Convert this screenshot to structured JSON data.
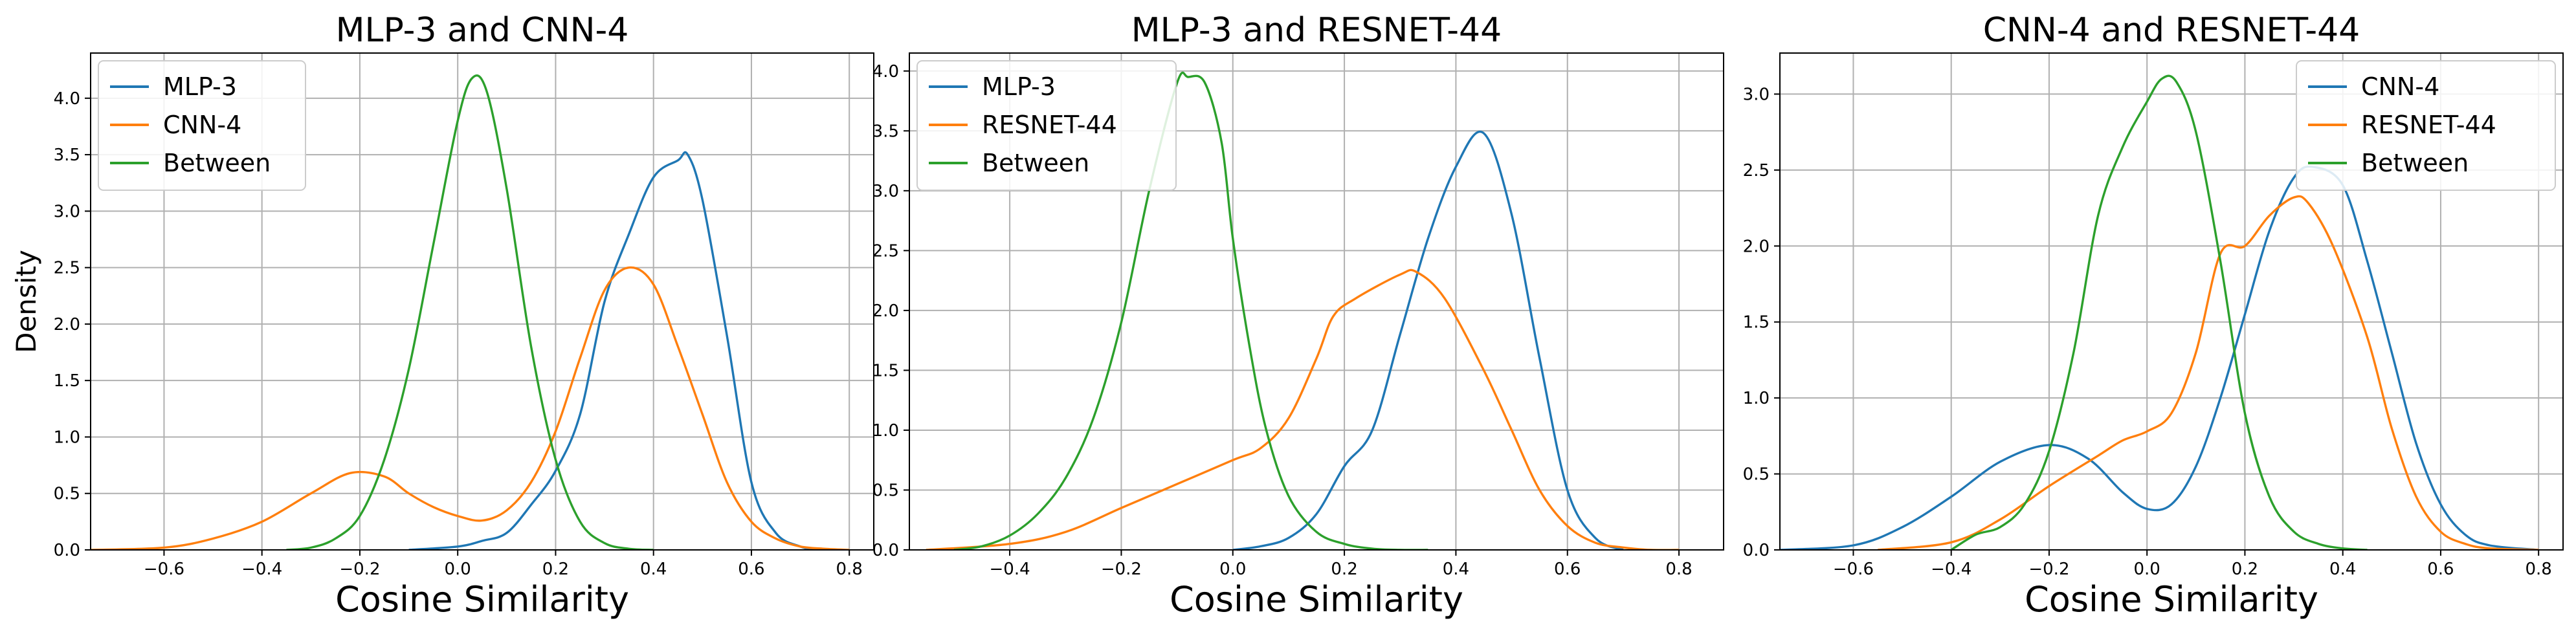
{
  "chart_data": [
    {
      "type": "line",
      "title": "MLP-3 and CNN-4",
      "xlabel": "Cosine Similarity",
      "ylabel": "Density",
      "xlim": [
        -0.75,
        0.85
      ],
      "ylim": [
        0,
        4.4
      ],
      "xticks": [
        -0.6,
        -0.4,
        -0.2,
        0.0,
        0.2,
        0.4,
        0.6,
        0.8
      ],
      "xtick_labels": [
        "−0.6",
        "−0.4",
        "−0.2",
        "0.0",
        "0.2",
        "0.4",
        "0.6",
        "0.8"
      ],
      "yticks": [
        0,
        0.5,
        1.0,
        1.5,
        2.0,
        2.5,
        3.0,
        3.5,
        4.0
      ],
      "ytick_labels": [
        "0.0",
        "0.5",
        "1.0",
        "1.5",
        "2.0",
        "2.5",
        "3.0",
        "3.5",
        "4.0"
      ],
      "grid": true,
      "legend": "upper left",
      "series": [
        {
          "name": "MLP-3",
          "color": "#1f77b4",
          "x": [
            -0.1,
            0.0,
            0.05,
            0.1,
            0.15,
            0.2,
            0.25,
            0.3,
            0.35,
            0.4,
            0.45,
            0.47,
            0.5,
            0.55,
            0.6,
            0.65,
            0.7,
            0.73
          ],
          "y": [
            0.0,
            0.03,
            0.08,
            0.15,
            0.4,
            0.7,
            1.2,
            2.2,
            2.8,
            3.3,
            3.45,
            3.5,
            3.1,
            1.9,
            0.6,
            0.15,
            0.03,
            0.0
          ]
        },
        {
          "name": "CNN-4",
          "color": "#ff7f0e",
          "x": [
            -0.75,
            -0.6,
            -0.5,
            -0.4,
            -0.3,
            -0.22,
            -0.15,
            -0.1,
            -0.05,
            0.0,
            0.05,
            0.1,
            0.15,
            0.2,
            0.25,
            0.3,
            0.35,
            0.4,
            0.45,
            0.5,
            0.55,
            0.6,
            0.65,
            0.7,
            0.75,
            0.8
          ],
          "y": [
            0.0,
            0.02,
            0.1,
            0.25,
            0.5,
            0.68,
            0.65,
            0.5,
            0.38,
            0.3,
            0.26,
            0.35,
            0.6,
            1.05,
            1.7,
            2.3,
            2.5,
            2.35,
            1.8,
            1.2,
            0.6,
            0.25,
            0.1,
            0.03,
            0.01,
            0.0
          ]
        },
        {
          "name": "Between",
          "color": "#2ca02c",
          "x": [
            -0.35,
            -0.3,
            -0.25,
            -0.2,
            -0.15,
            -0.1,
            -0.05,
            0.0,
            0.03,
            0.06,
            0.1,
            0.15,
            0.2,
            0.25,
            0.3,
            0.35,
            0.4
          ],
          "y": [
            0.0,
            0.02,
            0.1,
            0.3,
            0.8,
            1.6,
            2.7,
            3.8,
            4.18,
            4.05,
            3.2,
            1.8,
            0.8,
            0.25,
            0.06,
            0.01,
            0.0
          ]
        }
      ]
    },
    {
      "type": "line",
      "title": "MLP-3 and RESNET-44",
      "xlabel": "Cosine Similarity",
      "ylabel": "",
      "xlim": [
        -0.58,
        0.88
      ],
      "ylim": [
        0,
        4.15
      ],
      "xticks": [
        -0.4,
        -0.2,
        0.0,
        0.2,
        0.4,
        0.6,
        0.8
      ],
      "xtick_labels": [
        "−0.4",
        "−0.2",
        "0.0",
        "0.2",
        "0.4",
        "0.6",
        "0.8"
      ],
      "yticks": [
        0,
        0.5,
        1.0,
        1.5,
        2.0,
        2.5,
        3.0,
        3.5,
        4.0
      ],
      "ytick_labels": [
        "0.0",
        "0.5",
        "1.0",
        "1.5",
        "2.0",
        "2.5",
        "3.0",
        "3.5",
        "4.0"
      ],
      "grid": true,
      "legend": "upper left",
      "series": [
        {
          "name": "MLP-3",
          "color": "#1f77b4",
          "x": [
            0.0,
            0.05,
            0.1,
            0.15,
            0.2,
            0.25,
            0.3,
            0.35,
            0.4,
            0.45,
            0.5,
            0.55,
            0.6,
            0.65,
            0.7
          ],
          "y": [
            0.0,
            0.03,
            0.1,
            0.3,
            0.7,
            1.0,
            1.8,
            2.6,
            3.2,
            3.48,
            2.8,
            1.6,
            0.5,
            0.1,
            0.0
          ]
        },
        {
          "name": "RESNET-44",
          "color": "#ff7f0e",
          "x": [
            -0.55,
            -0.4,
            -0.3,
            -0.2,
            -0.1,
            0.0,
            0.05,
            0.1,
            0.15,
            0.18,
            0.22,
            0.3,
            0.33,
            0.38,
            0.45,
            0.5,
            0.55,
            0.6,
            0.65,
            0.7,
            0.75,
            0.8
          ],
          "y": [
            0.0,
            0.05,
            0.15,
            0.35,
            0.55,
            0.75,
            0.85,
            1.1,
            1.6,
            1.95,
            2.1,
            2.3,
            2.32,
            2.1,
            1.5,
            1.0,
            0.5,
            0.2,
            0.06,
            0.02,
            0.0,
            0.0
          ]
        },
        {
          "name": "Between",
          "color": "#2ca02c",
          "x": [
            -0.5,
            -0.45,
            -0.4,
            -0.35,
            -0.3,
            -0.25,
            -0.2,
            -0.15,
            -0.1,
            -0.08,
            -0.05,
            -0.02,
            0.0,
            0.03,
            0.06,
            0.1,
            0.15,
            0.2,
            0.25,
            0.3,
            0.35
          ],
          "y": [
            0.0,
            0.03,
            0.12,
            0.3,
            0.6,
            1.1,
            1.9,
            3.0,
            3.9,
            3.95,
            3.9,
            3.4,
            2.6,
            1.7,
            1.0,
            0.45,
            0.15,
            0.05,
            0.01,
            0.0,
            0.0
          ]
        }
      ]
    },
    {
      "type": "line",
      "title": "CNN-4 and RESNET-44",
      "xlabel": "Cosine Similarity",
      "ylabel": "",
      "xlim": [
        -0.75,
        0.85
      ],
      "ylim": [
        0,
        3.27
      ],
      "xticks": [
        -0.6,
        -0.4,
        -0.2,
        0.0,
        0.2,
        0.4,
        0.6,
        0.8
      ],
      "xtick_labels": [
        "−0.6",
        "−0.4",
        "−0.2",
        "0.0",
        "0.2",
        "0.4",
        "0.6",
        "0.8"
      ],
      "yticks": [
        0,
        0.5,
        1.0,
        1.5,
        2.0,
        2.5,
        3.0
      ],
      "ytick_labels": [
        "0.0",
        "0.5",
        "1.0",
        "1.5",
        "2.0",
        "2.5",
        "3.0"
      ],
      "grid": true,
      "legend": "upper right",
      "series": [
        {
          "name": "CNN-4",
          "color": "#1f77b4",
          "x": [
            -0.75,
            -0.6,
            -0.5,
            -0.4,
            -0.3,
            -0.2,
            -0.12,
            -0.05,
            0.0,
            0.05,
            0.1,
            0.15,
            0.2,
            0.25,
            0.3,
            0.34,
            0.4,
            0.45,
            0.5,
            0.55,
            0.6,
            0.65,
            0.7,
            0.8
          ],
          "y": [
            0.0,
            0.03,
            0.15,
            0.35,
            0.58,
            0.69,
            0.6,
            0.38,
            0.27,
            0.3,
            0.55,
            1.0,
            1.55,
            2.1,
            2.45,
            2.52,
            2.4,
            1.9,
            1.3,
            0.7,
            0.3,
            0.1,
            0.03,
            0.0
          ]
        },
        {
          "name": "RESNET-44",
          "color": "#ff7f0e",
          "x": [
            -0.55,
            -0.4,
            -0.3,
            -0.2,
            -0.1,
            -0.05,
            0.0,
            0.05,
            0.1,
            0.15,
            0.2,
            0.25,
            0.3,
            0.33,
            0.38,
            0.45,
            0.5,
            0.55,
            0.6,
            0.65,
            0.7,
            0.8
          ],
          "y": [
            0.0,
            0.05,
            0.2,
            0.42,
            0.62,
            0.72,
            0.78,
            0.9,
            1.3,
            1.95,
            2.0,
            2.2,
            2.32,
            2.28,
            2.0,
            1.4,
            0.8,
            0.35,
            0.12,
            0.04,
            0.01,
            0.0
          ]
        },
        {
          "name": "Between",
          "color": "#2ca02c",
          "x": [
            -0.4,
            -0.35,
            -0.3,
            -0.25,
            -0.2,
            -0.15,
            -0.1,
            -0.05,
            0.0,
            0.03,
            0.06,
            0.1,
            0.15,
            0.2,
            0.25,
            0.3,
            0.35,
            0.4,
            0.45
          ],
          "y": [
            0.0,
            0.1,
            0.15,
            0.3,
            0.65,
            1.3,
            2.2,
            2.65,
            2.95,
            3.1,
            3.08,
            2.75,
            1.9,
            0.9,
            0.35,
            0.12,
            0.04,
            0.01,
            0.0
          ]
        }
      ]
    }
  ]
}
